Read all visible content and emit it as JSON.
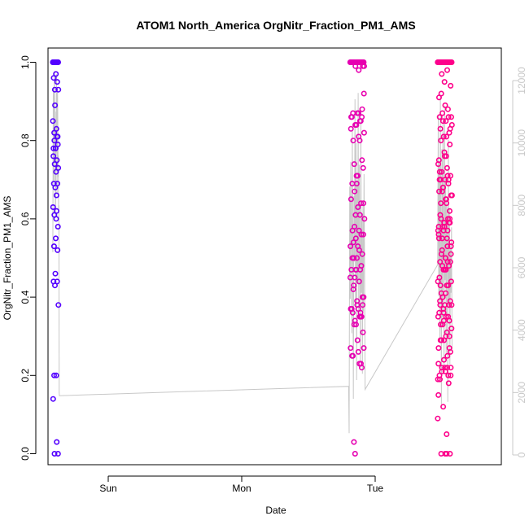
{
  "chart_data": {
    "type": "scatter",
    "title": "ATOM1 North_America OrgNitr_Fraction_PM1_AMS",
    "xlabel": "Date",
    "ylabel": "OrgNitr_Fraction_PM1_AMS",
    "x_ticks": [
      "Sun",
      "Mon",
      "Tue"
    ],
    "x_range": [
      "2016-08-20T16:00",
      "2016-08-23T01:00"
    ],
    "y_left": {
      "range": [
        0,
        1
      ],
      "ticks": [
        "0.0",
        "0.2",
        "0.4",
        "0.6",
        "0.8",
        "1.0"
      ]
    },
    "y_right": {
      "range": [
        0,
        12000
      ],
      "ticks": [
        "0",
        "2000",
        "4000",
        "6000",
        "8000",
        "10000",
        "12000"
      ],
      "color": "#c8c8c8"
    },
    "grid": false,
    "point_color_gradient": [
      "#5200ff",
      "#cc00dd",
      "#ff0088"
    ],
    "series": [
      {
        "type": "scatter",
        "clusters": [
          {
            "x_start": "2016-08-20T16:36",
            "x_end": "2016-08-20T17:19",
            "values": [
              1.0,
              1.0,
              1.0,
              1.0,
              1.0,
              1.0,
              1.0,
              1.0,
              1.0,
              1.0,
              1.0,
              1.0,
              1.0,
              1.0,
              0.66,
              0.8,
              0.79,
              0.78,
              0.78,
              0.81,
              0.93,
              0.93,
              0.6,
              0.53,
              0.52,
              0.46,
              0.14,
              0.03,
              0.0,
              0.0,
              0.97,
              0.96,
              0.95,
              0.89,
              0.85,
              0.83,
              0.82,
              0.81,
              0.78,
              0.76,
              0.75,
              0.74,
              0.73,
              0.72,
              0.69,
              0.69,
              0.68,
              0.63,
              0.62,
              0.61,
              0.58,
              0.55,
              0.44,
              0.44,
              0.43,
              0.38,
              0.2,
              0.2
            ]
          },
          {
            "x_start": "2016-08-22T06:00",
            "x_end": "2016-08-22T07:48",
            "values": [
              1.0,
              1.0,
              1.0,
              1.0,
              1.0,
              1.0,
              1.0,
              1.0,
              1.0,
              1.0,
              1.0,
              1.0,
              1.0,
              1.0,
              1.0,
              1.0,
              1.0,
              1.0,
              1.0,
              1.0,
              0.99,
              0.99,
              0.98,
              0.42,
              0.88,
              0.69,
              0.86,
              0.85,
              0.67,
              0.64,
              0.63,
              0.57,
              0.56,
              0.55,
              0.53,
              0.52,
              0.5,
              0.38,
              0.38,
              0.37,
              0.36,
              0.0,
              0.92,
              0.87,
              0.87,
              0.86,
              0.84,
              0.83,
              0.8,
              0.74,
              0.73,
              0.71,
              0.69,
              0.64,
              0.61,
              0.6,
              0.57,
              0.54,
              0.51,
              0.5,
              0.47,
              0.47,
              0.45,
              0.4,
              0.37,
              0.36,
              0.35,
              0.33,
              0.27,
              0.23,
              0.03,
              0.99,
              0.87,
              0.86,
              0.85,
              0.84,
              0.82,
              0.81,
              0.8,
              0.75,
              0.71,
              0.65,
              0.61,
              0.58,
              0.56,
              0.53,
              0.5,
              0.48,
              0.47,
              0.45,
              0.44,
              0.43,
              0.4,
              0.39,
              0.37,
              0.35,
              0.34,
              0.27,
              0.26,
              0.25,
              0.22,
              0.47,
              0.37,
              0.35,
              0.33,
              0.31,
              0.29,
              0.25,
              0.23
            ]
          },
          {
            "x_start": "2016-08-22T17:00",
            "x_end": "2016-08-22T18:48",
            "values": [
              1.0,
              1.0,
              1.0,
              1.0,
              1.0,
              1.0,
              1.0,
              1.0,
              1.0,
              1.0,
              1.0,
              1.0,
              1.0,
              1.0,
              1.0,
              1.0,
              1.0,
              1.0,
              1.0,
              1.0,
              1.0,
              1.0,
              0.76,
              0.7,
              0.62,
              0.59,
              0.56,
              0.53,
              0.52,
              0.51,
              0.5,
              0.39,
              0.38,
              0.37,
              0.19,
              0.0,
              0.92,
              0.83,
              0.76,
              0.67,
              0.6,
              0.58,
              0.54,
              0.47,
              0.43,
              0.34,
              0.34,
              0.15,
              0.98,
              0.97,
              0.94,
              0.89,
              0.86,
              0.86,
              0.85,
              0.84,
              0.81,
              0.8,
              0.79,
              0.77,
              0.75,
              0.71,
              0.67,
              0.66,
              0.65,
              0.61,
              0.59,
              0.57,
              0.57,
              0.55,
              0.51,
              0.49,
              0.47,
              0.45,
              0.43,
              0.4,
              0.38,
              0.35,
              0.33,
              0.3,
              0.29,
              0.27,
              0.25,
              0.22,
              0.22,
              0.21,
              0.19,
              0.18,
              0.12,
              0.09,
              0.05,
              0.0,
              0.0,
              0.95,
              0.91,
              0.88,
              0.87,
              0.86,
              0.85,
              0.83,
              0.82,
              0.81,
              0.74,
              0.73,
              0.72,
              0.71,
              0.7,
              0.7,
              0.69,
              0.68,
              0.66,
              0.65,
              0.64,
              0.6,
              0.59,
              0.58,
              0.57,
              0.55,
              0.53,
              0.5,
              0.49,
              0.48,
              0.47,
              0.44,
              0.43,
              0.41,
              0.39,
              0.38,
              0.36,
              0.35,
              0.33,
              0.32,
              0.3,
              0.29,
              0.27,
              0.24,
              0.23,
              0.22,
              0.21,
              0.2,
              0.0,
              0.72,
              0.7,
              0.68,
              0.66,
              0.64,
              0.6,
              0.59,
              0.58,
              0.55,
              0.49,
              0.48,
              0.44,
              0.41,
              0.38,
              0.38,
              0.36,
              0.35,
              0.31,
              0.29,
              0.26,
              0.22,
              0.2,
              0.2
            ]
          }
        ]
      },
      {
        "type": "line",
        "axis": "right",
        "color": "#c8c8c8",
        "x": [
          "2016-08-20T16:36",
          "2016-08-20T16:38",
          "2016-08-20T16:40",
          "2016-08-20T16:42",
          "2016-08-20T16:44",
          "2016-08-20T16:46",
          "2016-08-20T16:48",
          "2016-08-20T16:50",
          "2016-08-20T16:52",
          "2016-08-20T16:54",
          "2016-08-20T16:56",
          "2016-08-20T16:58",
          "2016-08-20T17:00",
          "2016-08-20T17:02",
          "2016-08-20T17:04",
          "2016-08-20T17:06",
          "2016-08-20T17:08",
          "2016-08-20T17:10",
          "2016-08-20T17:12",
          "2016-08-20T17:14",
          "2016-08-20T17:16",
          "2016-08-20T17:18",
          "2016-08-20T17:20",
          "2016-08-20T17:22",
          "2016-08-20T17:24",
          "2016-08-20T17:26",
          "2016-08-22T05:48",
          "2016-08-22T05:52",
          "2016-08-22T05:56",
          "2016-08-22T06:00",
          "2016-08-22T06:04",
          "2016-08-22T06:08",
          "2016-08-22T06:12",
          "2016-08-22T06:16",
          "2016-08-22T06:20",
          "2016-08-22T06:24",
          "2016-08-22T06:28",
          "2016-08-22T06:32",
          "2016-08-22T06:36",
          "2016-08-22T06:40",
          "2016-08-22T06:44",
          "2016-08-22T06:48",
          "2016-08-22T06:52",
          "2016-08-22T06:56",
          "2016-08-22T07:00",
          "2016-08-22T07:04",
          "2016-08-22T07:08",
          "2016-08-22T07:12",
          "2016-08-22T07:16",
          "2016-08-22T07:20",
          "2016-08-22T07:24",
          "2016-08-22T07:28",
          "2016-08-22T07:32",
          "2016-08-22T07:36",
          "2016-08-22T07:40",
          "2016-08-22T07:44",
          "2016-08-22T07:48",
          "2016-08-22T07:52",
          "2016-08-22T17:00",
          "2016-08-22T17:04",
          "2016-08-22T17:08",
          "2016-08-22T17:12",
          "2016-08-22T17:16",
          "2016-08-22T17:20",
          "2016-08-22T17:24",
          "2016-08-22T17:28",
          "2016-08-22T17:32",
          "2016-08-22T17:36",
          "2016-08-22T17:40",
          "2016-08-22T17:44",
          "2016-08-22T17:48",
          "2016-08-22T17:52",
          "2016-08-22T17:56",
          "2016-08-22T18:00",
          "2016-08-22T18:04",
          "2016-08-22T18:08",
          "2016-08-22T18:12",
          "2016-08-22T18:16",
          "2016-08-22T18:20",
          "2016-08-22T18:24",
          "2016-08-22T18:28",
          "2016-08-22T18:32",
          "2016-08-22T18:36",
          "2016-08-22T18:40",
          "2016-08-22T18:44",
          "2016-08-22T18:48"
        ],
        "values": [
          6500,
          9200,
          11800,
          10500,
          8800,
          11000,
          12300,
          11600,
          10200,
          9000,
          7600,
          8200,
          11000,
          9700,
          12200,
          11300,
          8400,
          9800,
          11700,
          10500,
          8900,
          9600,
          7800,
          8000,
          2000,
          1900,
          2200,
          700,
          8600,
          5000,
          9400,
          7200,
          3900,
          10400,
          6600,
          1800,
          8300,
          6200,
          11400,
          4900,
          10000,
          2400,
          8800,
          5500,
          11600,
          4500,
          9300,
          6000,
          3000,
          10800,
          5200,
          7600,
          2600,
          8000,
          4600,
          9000,
          6400,
          2100,
          6100,
          10900,
          5100,
          9300,
          3700,
          11500,
          7200,
          1500,
          9800,
          4400,
          10700,
          6700,
          2800,
          11200,
          5600,
          9000,
          3200,
          8200,
          6800,
          1700,
          10100,
          4800,
          7900,
          2900,
          6600,
          5200,
          7300,
          3400
        ]
      }
    ]
  }
}
